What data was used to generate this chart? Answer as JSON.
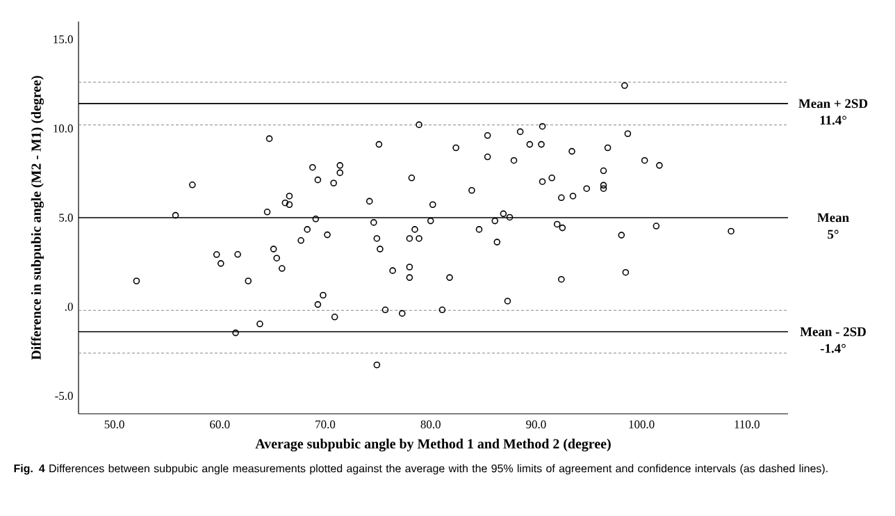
{
  "chart_data": {
    "type": "scatter",
    "xlabel": "Average subpubic angle by Method 1 and Method 2 (degree)",
    "ylabel": "Difference in subpubic angle (M2 - M1) (degree)",
    "xlim": [
      46.6,
      113.9
    ],
    "ylim": [
      -6.0,
      16.0
    ],
    "xticks": [
      {
        "value": 50,
        "label": "50.0"
      },
      {
        "value": 60,
        "label": "60.0"
      },
      {
        "value": 70,
        "label": "70.0"
      },
      {
        "value": 80,
        "label": "80.0"
      },
      {
        "value": 90,
        "label": "90.0"
      },
      {
        "value": 100,
        "label": "100.0"
      },
      {
        "value": 110,
        "label": "110.0"
      }
    ],
    "yticks": [
      {
        "value": -5,
        "label": "-5.0"
      },
      {
        "value": 0,
        "label": ".0"
      },
      {
        "value": 5,
        "label": "5.0"
      },
      {
        "value": 10,
        "label": "10.0"
      },
      {
        "value": 15,
        "label": "15.0"
      }
    ],
    "marker": "circle",
    "series": [
      {
        "color": "#000000",
        "x": [
          52.1,
          55.8,
          57.4,
          59.7,
          60.1,
          61.7,
          62.7,
          64.7,
          64.5,
          65.1,
          65.4,
          65.9,
          66.2,
          66.6,
          66.6,
          67.7,
          68.3,
          68.8,
          69.3,
          69.1,
          70.2,
          70.8,
          71.4,
          71.4,
          75.1,
          78.9,
          78.2,
          74.2,
          80.2,
          82.4,
          83.9,
          85.4,
          85.4,
          87.9,
          88.5,
          89.4,
          90.5,
          90.6,
          90.6,
          91.5,
          93.4,
          92.4,
          93.5,
          94.8,
          96.4,
          96.4,
          96.4,
          96.8,
          98.4,
          98.7,
          100.3,
          101.7,
          74.6,
          74.9,
          75.2,
          78.0,
          78.9,
          78.5,
          80.0,
          76.4,
          78.0,
          78.0,
          81.8,
          84.6,
          86.1,
          86.9,
          87.5,
          86.3,
          92.0,
          92.5,
          92.4,
          98.1,
          98.5,
          101.4,
          69.3,
          69.8,
          70.9,
          75.7,
          77.3,
          81.1,
          87.3,
          74.9,
          61.5,
          63.8,
          108.5
        ],
        "values": [
          1.45,
          5.13,
          6.84,
          2.93,
          2.43,
          2.94,
          1.45,
          9.43,
          5.32,
          3.24,
          2.73,
          2.15,
          5.83,
          6.21,
          5.73,
          3.72,
          4.34,
          7.82,
          7.12,
          4.93,
          4.04,
          6.94,
          7.93,
          7.52,
          9.11,
          10.21,
          7.23,
          5.92,
          5.73,
          8.92,
          6.53,
          9.61,
          8.41,
          8.21,
          9.82,
          9.11,
          9.11,
          10.12,
          7.02,
          7.23,
          8.72,
          6.12,
          6.21,
          6.63,
          7.63,
          6.82,
          6.63,
          8.92,
          12.41,
          9.71,
          8.21,
          7.93,
          4.73,
          3.83,
          3.24,
          3.83,
          3.83,
          4.34,
          4.82,
          2.03,
          2.23,
          1.64,
          1.64,
          4.34,
          4.82,
          5.22,
          5.02,
          3.63,
          4.63,
          4.43,
          1.54,
          4.02,
          1.93,
          4.53,
          0.13,
          0.65,
          -0.57,
          -0.17,
          -0.37,
          -0.17,
          0.32,
          -3.26,
          -1.46,
          -0.96,
          4.24
        ]
      }
    ],
    "ref_lines": [
      {
        "axis": "y",
        "value": 11.4,
        "label": "Mean + 2SD",
        "color": "#000000",
        "line_style": "solid"
      },
      {
        "axis": "y",
        "value": 5,
        "label": "Mean",
        "color": "#000000",
        "line_style": "solid"
      },
      {
        "axis": "y",
        "value": -1.4,
        "label": "Mean - 2SD",
        "color": "#000000",
        "line_style": "solid"
      },
      {
        "axis": "y",
        "value": 12.6,
        "color": "#777777",
        "line_style": "dashed"
      },
      {
        "axis": "y",
        "value": 10.2,
        "color": "#777777",
        "line_style": "dashed"
      },
      {
        "axis": "y",
        "value": -0.2,
        "color": "#777777",
        "line_style": "dashed"
      },
      {
        "axis": "y",
        "value": -2.6,
        "color": "#777777",
        "line_style": "dashed"
      }
    ],
    "annotations": [
      "11.4°",
      "5°",
      "-1.4°",
      "**Fig. 4** Differences between subpubic angle measurements plotted against the average with the 95% limits of agreement and confidence intervals (as dashed lines)."
    ]
  }
}
